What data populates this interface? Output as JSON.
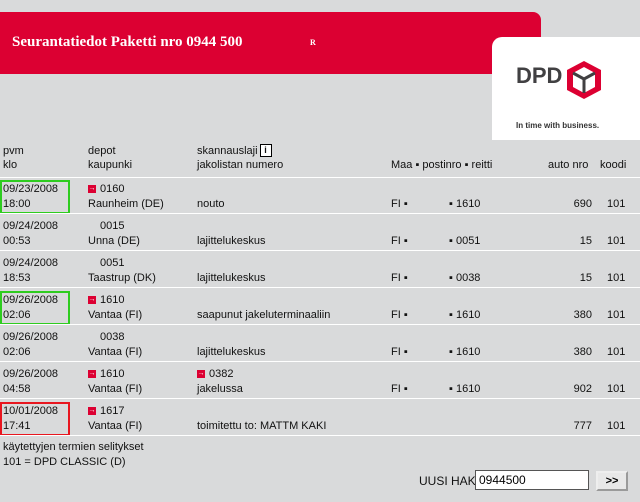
{
  "banner": {
    "title": "Seurantatiedot Paketti nro 0944 500",
    "mark": "R"
  },
  "logo": {
    "word": "DPD",
    "tagline": "In time with business."
  },
  "headers": {
    "pvm": "pvm",
    "klo": "klo",
    "depot": "depot",
    "kaupunki": "kaupunki",
    "skannauslaji": "skannauslaji",
    "info_icon": "i",
    "jakolistan": "jakolistan numero",
    "maa_postinro_reitti": "Maa ▪ postinro ▪ reitti",
    "auto_nro": "auto nro",
    "koodi": "koodi"
  },
  "rows": [
    {
      "date": "09/23/2008",
      "time": "18:00",
      "depot_arrow": true,
      "depot": "0160",
      "city": "Raunheim (DE)",
      "scan_top": "",
      "scan_arrow": false,
      "scan": "nouto",
      "maa": "FI ▪",
      "post": "▪ 1610",
      "auto": "690",
      "code": "101",
      "highlight": "green"
    },
    {
      "date": "09/24/2008",
      "time": "00:53",
      "depot_arrow": false,
      "depot": "0015",
      "city": "Unna (DE)",
      "scan_top": "",
      "scan_arrow": false,
      "scan": "lajittelukeskus",
      "maa": "FI ▪",
      "post": "▪ 0051",
      "auto": "15",
      "code": "101",
      "highlight": ""
    },
    {
      "date": "09/24/2008",
      "time": "18:53",
      "depot_arrow": false,
      "depot": "0051",
      "city": "Taastrup (DK)",
      "scan_top": "",
      "scan_arrow": false,
      "scan": "lajittelukeskus",
      "maa": "FI ▪",
      "post": "▪ 0038",
      "auto": "15",
      "code": "101",
      "highlight": ""
    },
    {
      "date": "09/26/2008",
      "time": "02:06",
      "depot_arrow": true,
      "depot": "1610",
      "city": "Vantaa (FI)",
      "scan_top": "",
      "scan_arrow": false,
      "scan": "saapunut jakeluterminaaliin",
      "maa": "FI ▪",
      "post": "▪ 1610",
      "auto": "380",
      "code": "101",
      "highlight": "green"
    },
    {
      "date": "09/26/2008",
      "time": "02:06",
      "depot_arrow": false,
      "depot": "0038",
      "city": "Vantaa (FI)",
      "scan_top": "",
      "scan_arrow": false,
      "scan": "lajittelukeskus",
      "maa": "FI ▪",
      "post": "▪ 1610",
      "auto": "380",
      "code": "101",
      "highlight": ""
    },
    {
      "date": "09/26/2008",
      "time": "04:58",
      "depot_arrow": true,
      "depot": "1610",
      "city": "Vantaa (FI)",
      "scan_top": "0382",
      "scan_arrow": true,
      "scan": "jakelussa",
      "maa": "FI ▪",
      "post": "▪ 1610",
      "auto": "902",
      "code": "101",
      "highlight": ""
    },
    {
      "date": "10/01/2008",
      "time": "17:41",
      "depot_arrow": true,
      "depot": "1617",
      "city": "Vantaa (FI)",
      "scan_top": "",
      "scan_arrow": false,
      "scan": "toimitettu to: MATTM KAKI",
      "maa": "",
      "post": "",
      "auto": "777",
      "code": "101",
      "highlight": "red"
    }
  ],
  "legend": {
    "title": "käytettyjen termien selitykset",
    "item": "101 = DPD CLASSIC (D)"
  },
  "search": {
    "label": "UUSI HAKU",
    "value": "0944500",
    "button": ">>"
  },
  "colors": {
    "brand_red": "#dc0032",
    "highlight_green": "#2ecc1f",
    "highlight_red": "#e8161f"
  }
}
